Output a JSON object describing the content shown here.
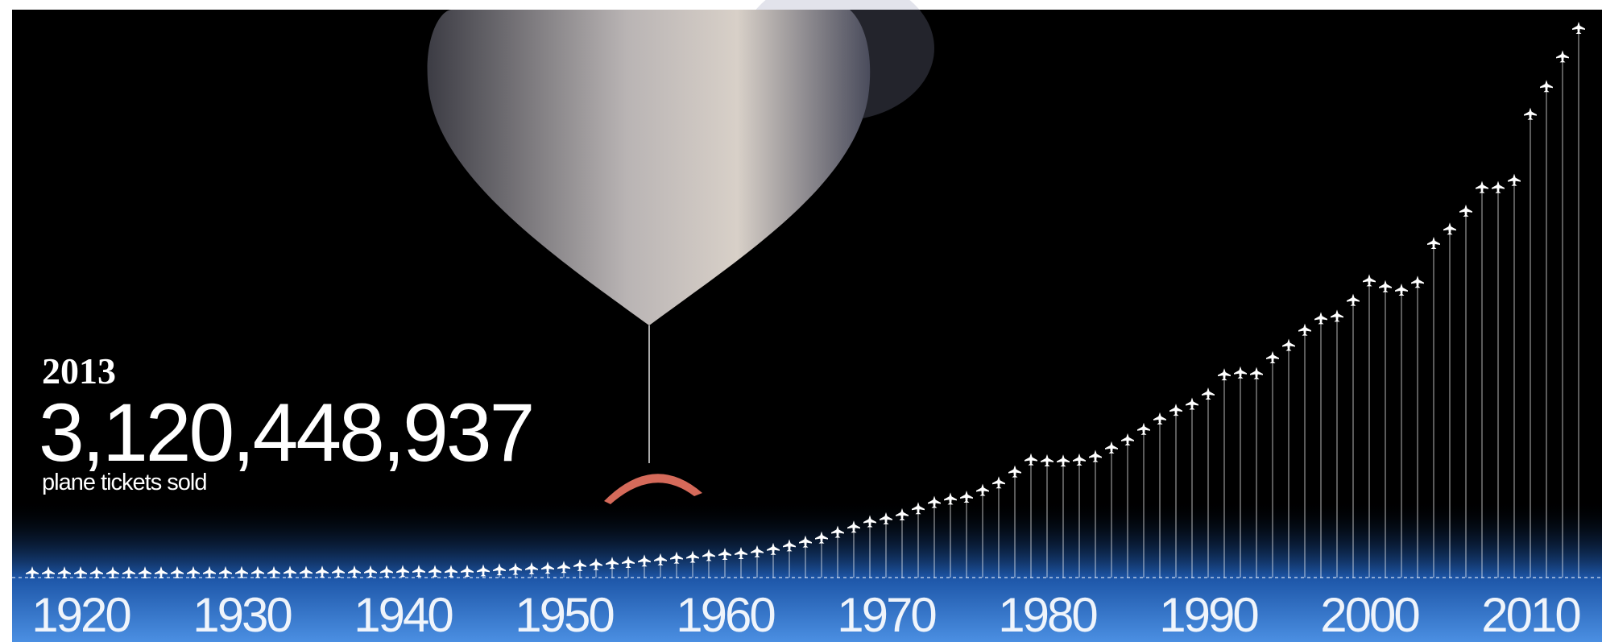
{
  "chart_data": {
    "type": "lollipop",
    "highlight": {
      "label": "2013",
      "value_label": "3,120,448,937",
      "caption": "plane tickets sold"
    },
    "color": "#ffffff",
    "x": [
      1917,
      1918,
      1919,
      1920,
      1921,
      1922,
      1923,
      1924,
      1925,
      1926,
      1927,
      1928,
      1929,
      1930,
      1931,
      1932,
      1933,
      1934,
      1935,
      1936,
      1937,
      1938,
      1939,
      1940,
      1941,
      1942,
      1943,
      1944,
      1945,
      1946,
      1947,
      1948,
      1949,
      1950,
      1951,
      1952,
      1953,
      1954,
      1955,
      1956,
      1957,
      1958,
      1959,
      1960,
      1961,
      1962,
      1963,
      1964,
      1965,
      1966,
      1967,
      1968,
      1969,
      1970,
      1971,
      1972,
      1973,
      1974,
      1975,
      1976,
      1977,
      1978,
      1979,
      1980,
      1981,
      1982,
      1983,
      1984,
      1985,
      1986,
      1987,
      1988,
      1989,
      1990,
      1991,
      1992,
      1993,
      1994,
      1995,
      1996,
      1997,
      1998,
      1999,
      2000,
      2001,
      2002,
      2003,
      2004,
      2005,
      2006,
      2007,
      2008,
      2009,
      2010,
      2011,
      2012,
      2013
    ],
    "values": [
      0,
      0,
      0,
      0,
      0,
      0,
      0,
      0,
      0,
      1000000,
      1000000,
      1000000,
      1000000,
      2000000,
      2000000,
      2000000,
      3000000,
      3000000,
      4000000,
      5000000,
      5000000,
      6000000,
      7000000,
      8000000,
      9000000,
      8000000,
      8000000,
      9000000,
      12000000,
      18000000,
      21000000,
      24000000,
      27000000,
      31000000,
      42000000,
      48000000,
      55000000,
      60000000,
      68000000,
      75000000,
      85000000,
      90000000,
      100000000,
      106000000,
      111000000,
      121000000,
      135000000,
      155000000,
      177000000,
      200000000,
      233000000,
      262000000,
      293000000,
      310000000,
      333000000,
      368000000,
      404000000,
      423000000,
      434000000,
      473000000,
      516000000,
      579000000,
      648000000,
      642000000,
      641000000,
      647000000,
      667000000,
      716000000,
      762000000,
      823000000,
      882000000,
      932000000,
      967000000,
      1025000000,
      1135000000,
      1146000000,
      1142000000,
      1233000000,
      1304000000,
      1391000000,
      1457000000,
      1471000000,
      1562000000,
      1674000000,
      1640000000,
      1620000000,
      1665000000,
      1888000000,
      1970000000,
      2073000000,
      2208000000,
      2208000000,
      2250000000,
      2628000000,
      2787000000,
      2957000000,
      3120448937
    ],
    "xlim": [
      1916,
      2014
    ],
    "xticks": [
      1920,
      1930,
      1940,
      1950,
      1960,
      1970,
      1980,
      1990,
      2000,
      2010
    ]
  }
}
